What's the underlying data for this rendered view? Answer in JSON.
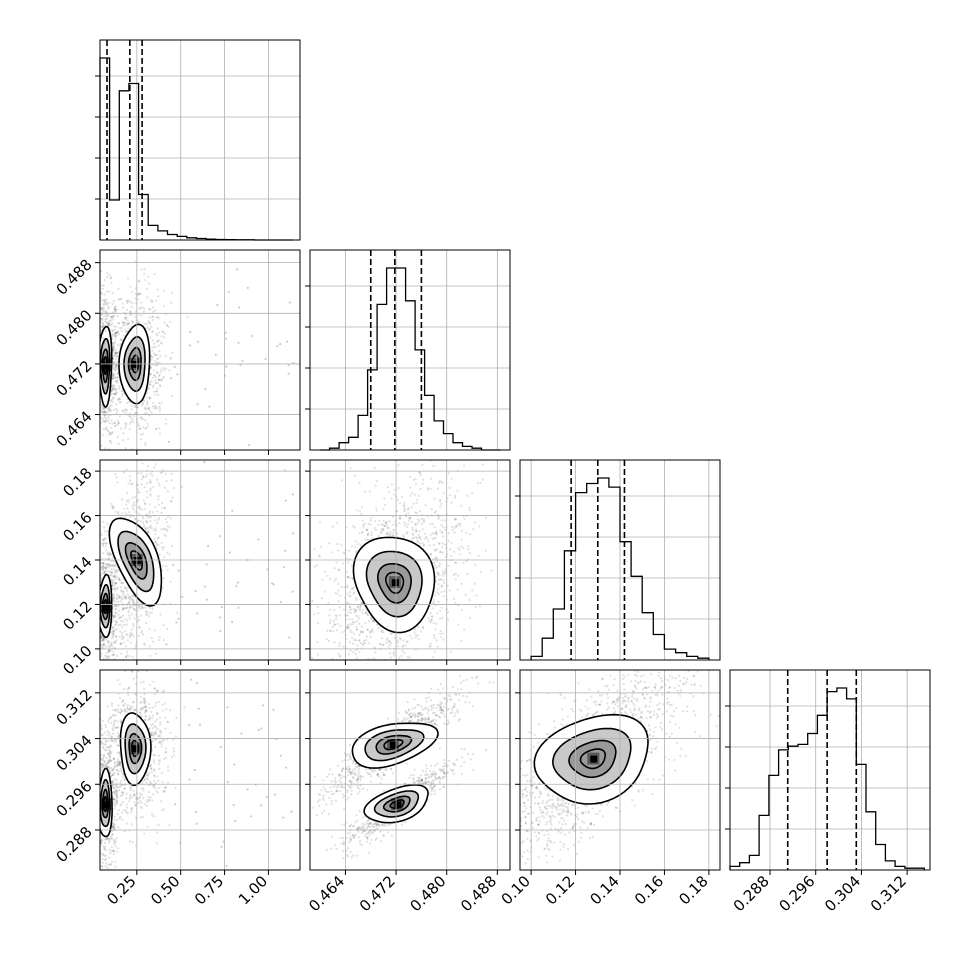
{
  "chart_data": {
    "type": "corner",
    "colors": {
      "points": "#000000",
      "grid": "#b0b0b0",
      "contour_fill_outer": "#ffffff",
      "contour_fill_mid": "#c9c9c9",
      "contour_fill_inner": "#5a5a5a"
    },
    "parameters": [
      {
        "range": [
          0.04,
          1.18
        ],
        "ticks": [
          0.25,
          0.5,
          0.75,
          1.0
        ],
        "tick_labels": [
          "0.25",
          "0.50",
          "0.75",
          "1.00"
        ],
        "quantiles": [
          0.08,
          0.21,
          0.28
        ]
      },
      {
        "range": [
          0.4584,
          0.49
        ],
        "ticks": [
          0.464,
          0.472,
          0.48,
          0.488
        ],
        "tick_labels": [
          "0.464",
          "0.472",
          "0.480",
          "0.488"
        ],
        "quantiles": [
          0.468,
          0.4718,
          0.476
        ]
      },
      {
        "range": [
          0.095,
          0.185
        ],
        "ticks": [
          0.1,
          0.12,
          0.14,
          0.16,
          0.18
        ],
        "tick_labels": [
          "0.10",
          "0.12",
          "0.14",
          "0.16",
          "0.18"
        ],
        "quantiles": [
          0.118,
          0.13,
          0.142
        ]
      },
      {
        "range": [
          0.281,
          0.316
        ],
        "ticks": [
          0.288,
          0.296,
          0.304,
          0.312
        ],
        "tick_labels": [
          "0.288",
          "0.296",
          "0.304",
          "0.312"
        ],
        "quantiles": [
          0.2911,
          0.298,
          0.3031
        ]
      }
    ],
    "histograms": [
      {
        "edges": [
          0.04,
          0.095,
          0.15,
          0.205,
          0.26,
          0.315,
          0.37,
          0.425,
          0.48,
          0.535,
          0.59,
          0.645,
          0.7,
          0.755,
          0.81,
          0.865,
          0.92,
          0.975,
          1.03,
          1.085,
          1.14
        ],
        "counts": [
          1.0,
          0.22,
          0.82,
          0.86,
          0.25,
          0.08,
          0.05,
          0.03,
          0.02,
          0.012,
          0.008,
          0.005,
          0.003,
          0.002,
          0.001,
          0.001,
          0,
          0,
          0,
          0
        ]
      },
      {
        "edges": [
          0.46,
          0.4615,
          0.463,
          0.4645,
          0.466,
          0.4675,
          0.469,
          0.4705,
          0.472,
          0.4735,
          0.475,
          0.4765,
          0.478,
          0.4795,
          0.481,
          0.4825,
          0.484,
          0.4855,
          0.487,
          0.4885
        ],
        "counts": [
          0.0,
          0.01,
          0.04,
          0.07,
          0.19,
          0.44,
          0.8,
          1.0,
          1.0,
          0.82,
          0.55,
          0.3,
          0.16,
          0.09,
          0.04,
          0.02,
          0.01,
          0.0,
          0.0
        ]
      },
      {
        "edges": [
          0.1,
          0.105,
          0.11,
          0.115,
          0.12,
          0.125,
          0.13,
          0.135,
          0.14,
          0.145,
          0.15,
          0.155,
          0.16,
          0.165,
          0.17,
          0.175,
          0.18
        ],
        "counts": [
          0.02,
          0.12,
          0.28,
          0.6,
          0.92,
          0.97,
          1.0,
          0.95,
          0.65,
          0.46,
          0.26,
          0.14,
          0.06,
          0.04,
          0.02,
          0.01
        ]
      },
      {
        "edges": [
          0.281,
          0.2827,
          0.2844,
          0.2861,
          0.2878,
          0.2895,
          0.2912,
          0.2929,
          0.2946,
          0.2963,
          0.298,
          0.2997,
          0.3014,
          0.3031,
          0.3048,
          0.3065,
          0.3082,
          0.3099,
          0.3116,
          0.3133,
          0.315
        ],
        "counts": [
          0.02,
          0.04,
          0.08,
          0.3,
          0.52,
          0.66,
          0.68,
          0.69,
          0.75,
          0.85,
          0.98,
          1.0,
          0.94,
          0.58,
          0.32,
          0.14,
          0.05,
          0.02,
          0.01,
          0.01
        ]
      }
    ],
    "blobs": {
      "1-0": [
        {
          "mx": 0.07,
          "my": 0.4718,
          "sx": 0.022,
          "sy": 0.0035,
          "rho": 0.0,
          "w": 0.45
        },
        {
          "mx": 0.24,
          "my": 0.472,
          "sx": 0.05,
          "sy": 0.0035,
          "rho": 0.0,
          "w": 0.55
        }
      ],
      "2-0": [
        {
          "mx": 0.07,
          "my": 0.119,
          "sx": 0.022,
          "sy": 0.008,
          "rho": 0.0,
          "w": 0.45
        },
        {
          "mx": 0.25,
          "my": 0.14,
          "sx": 0.05,
          "sy": 0.012,
          "rho": 0.3,
          "w": 0.55
        }
      ],
      "3-0": [
        {
          "mx": 0.07,
          "my": 0.2925,
          "sx": 0.022,
          "sy": 0.0035,
          "rho": 0.0,
          "w": 0.45
        },
        {
          "mx": 0.24,
          "my": 0.3023,
          "sx": 0.05,
          "sy": 0.0035,
          "rho": 0.0,
          "w": 0.55
        }
      ],
      "2-1": [
        {
          "mx": 0.4718,
          "my": 0.13,
          "sx": 0.0033,
          "sy": 0.0125,
          "rho": 0.35,
          "w": 1.0
        }
      ],
      "3-1": [
        {
          "mx": 0.4715,
          "my": 0.303,
          "sx": 0.0032,
          "sy": 0.0028,
          "rho": 0.9,
          "w": 0.55
        },
        {
          "mx": 0.4722,
          "my": 0.2925,
          "sx": 0.0025,
          "sy": 0.0022,
          "rho": 0.9,
          "w": 0.45
        }
      ],
      "3-2": [
        {
          "mx": 0.128,
          "my": 0.3005,
          "sx": 0.012,
          "sy": 0.005,
          "rho": 0.75,
          "w": 1.0
        }
      ]
    }
  }
}
